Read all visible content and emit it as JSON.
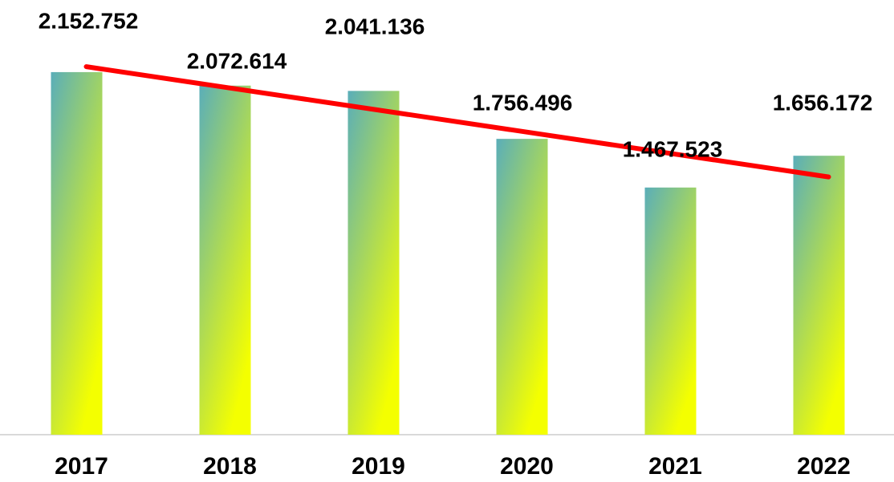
{
  "chart_data": {
    "type": "bar",
    "categories": [
      "2017",
      "2018",
      "2019",
      "2020",
      "2021",
      "2022"
    ],
    "values": [
      2152752,
      2072614,
      2041136,
      1756496,
      1467523,
      1656172
    ],
    "value_labels": [
      "2.152.752",
      "2.072.614",
      "2.041.136",
      "1.756.496",
      "1.467.523",
      "1.656.172"
    ],
    "color_top": "#5aaeb9",
    "color_bottom": "#f4ff00",
    "ylim": [
      0,
      2200000
    ],
    "trendline": true,
    "trendline_color": "#ff0000"
  }
}
